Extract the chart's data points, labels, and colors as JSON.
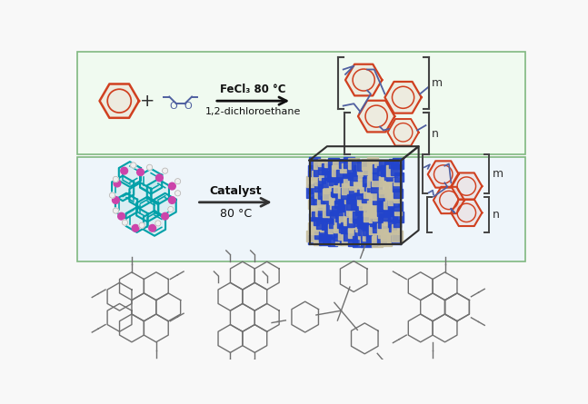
{
  "figsize": [
    6.47,
    4.45
  ],
  "dpi": 100,
  "bg_color": "#f8f8f8",
  "panel1_bg": "#f0faf0",
  "panel2_bg": "#eef5fa",
  "border_color": "#80b880",
  "reaction_text1": "FeCl₃ 80 °C",
  "reaction_text2": "1,2-dichloroethane",
  "catalyst_text1": "Catalyst",
  "catalyst_text2": "80 °C",
  "benzene_color": "#d04020",
  "polymer_color": "#d04020",
  "linker_color": "#5060a0",
  "arrow_color": "#101010",
  "struct_color": "#707070",
  "teal_color": "#00a0a8",
  "pink_color": "#cc44aa",
  "blue_color": "#2244cc",
  "silver_color": "#c8c0a0"
}
